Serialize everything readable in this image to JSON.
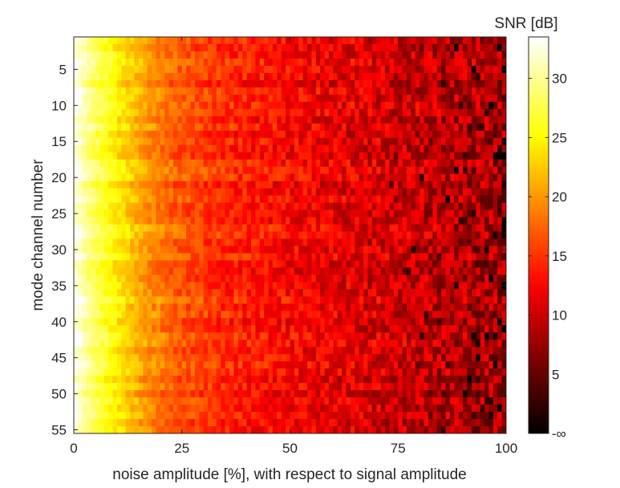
{
  "chart_data": {
    "type": "heatmap",
    "title": "",
    "xlabel": "noise amplitude [%], with respect to signal amplitude",
    "ylabel": "mode channel number",
    "xlim": [
      0,
      100
    ],
    "ylim": [
      0.5,
      55.5
    ],
    "y_direction": "reversed",
    "n_columns": 100,
    "n_rows": 55,
    "x_ticks": [
      0,
      25,
      50,
      75,
      100
    ],
    "y_ticks": [
      5,
      10,
      15,
      20,
      25,
      30,
      35,
      40,
      45,
      50,
      55
    ],
    "colorbar": {
      "label": "SNR [dB]",
      "colormap": "hot",
      "range": [
        0,
        33.5
      ],
      "ticks": [
        {
          "value": 0,
          "label": "-∞"
        },
        {
          "value": 5,
          "label": "5"
        },
        {
          "value": 10,
          "label": "10"
        },
        {
          "value": 15,
          "label": "15"
        },
        {
          "value": 20,
          "label": "20"
        },
        {
          "value": 25,
          "label": "25"
        },
        {
          "value": 30,
          "label": "30"
        }
      ]
    },
    "snr_profile_vs_noise": [
      {
        "noise": 0,
        "snr_db": 33
      },
      {
        "noise": 5,
        "snr_db": 28
      },
      {
        "noise": 10,
        "snr_db": 24.5
      },
      {
        "noise": 15,
        "snr_db": 21
      },
      {
        "noise": 20,
        "snr_db": 18.5
      },
      {
        "noise": 25,
        "snr_db": 16.5
      },
      {
        "noise": 35,
        "snr_db": 14.5
      },
      {
        "noise": 50,
        "snr_db": 12.5
      },
      {
        "noise": 65,
        "snr_db": 11
      },
      {
        "noise": 75,
        "snr_db": 10
      },
      {
        "noise": 85,
        "snr_db": 9
      },
      {
        "noise": 100,
        "snr_db": 8
      }
    ]
  }
}
